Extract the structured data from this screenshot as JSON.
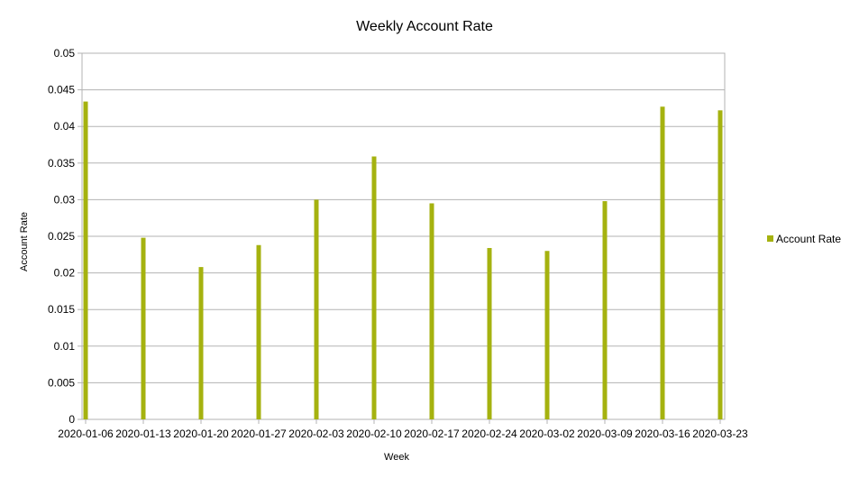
{
  "chart_data": {
    "type": "bar",
    "title": "Weekly Account Rate",
    "xlabel": "Week",
    "ylabel": "Account Rate",
    "categories": [
      "2020-01-06",
      "2020-01-13",
      "2020-01-20",
      "2020-01-27",
      "2020-02-03",
      "2020-02-10",
      "2020-02-17",
      "2020-02-24",
      "2020-03-02",
      "2020-03-09",
      "2020-03-16",
      "2020-03-23"
    ],
    "series": [
      {
        "name": "Account Rate",
        "color": "#a5b20f",
        "values": [
          0.0434,
          0.0248,
          0.0208,
          0.0238,
          0.03,
          0.0359,
          0.0295,
          0.0234,
          0.023,
          0.0298,
          0.0427,
          0.0422
        ]
      }
    ],
    "ylim": [
      0,
      0.05
    ],
    "yticks": [
      "0",
      "0.005",
      "0.01",
      "0.015",
      "0.02",
      "0.025",
      "0.03",
      "0.035",
      "0.04",
      "0.045",
      "0.05"
    ],
    "grid": true,
    "legend_position": "right"
  }
}
